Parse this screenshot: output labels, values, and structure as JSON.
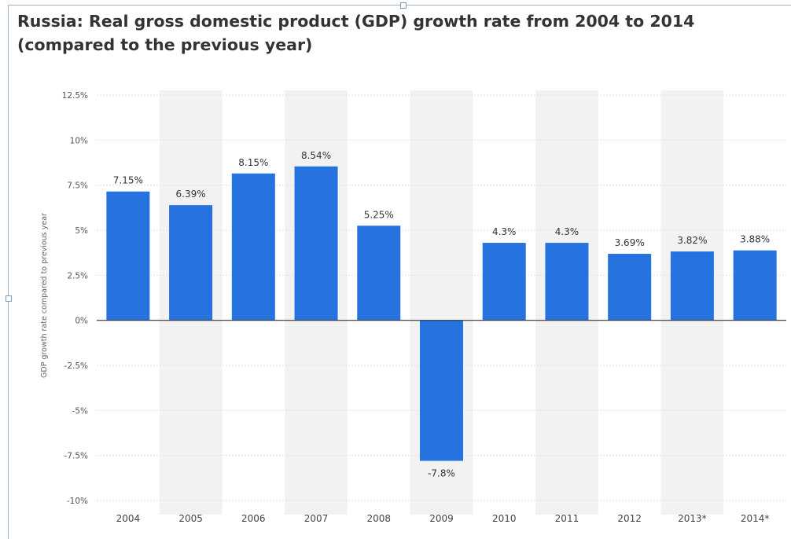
{
  "chart_data": {
    "type": "bar",
    "title": "Russia: Real gross domestic product (GDP) growth rate from 2004 to 2014 (compared to the previous year)",
    "ylabel": "GDP growth rate compared to previous year",
    "xlabel": "",
    "categories": [
      "2004",
      "2005",
      "2006",
      "2007",
      "2008",
      "2009",
      "2010",
      "2011",
      "2012",
      "2013*",
      "2014*"
    ],
    "values": [
      7.15,
      6.39,
      8.15,
      8.54,
      5.25,
      -7.8,
      4.3,
      4.3,
      3.69,
      3.82,
      3.88
    ],
    "data_labels": [
      "7.15%",
      "6.39%",
      "8.15%",
      "8.54%",
      "5.25%",
      "-7.8%",
      "4.3%",
      "4.3%",
      "3.69%",
      "3.82%",
      "3.88%"
    ],
    "y_ticks": [
      12.5,
      10,
      7.5,
      5,
      2.5,
      0,
      -2.5,
      -5,
      -7.5,
      -10
    ],
    "y_tick_labels": [
      "12.5%",
      "10%",
      "7.5%",
      "5%",
      "2.5%",
      "0%",
      "-2.5%",
      "-5%",
      "-7.5%",
      "-10%"
    ],
    "ylim": [
      -10,
      12.5
    ],
    "grid": true,
    "legend": "none",
    "colors": {
      "bar": "#2673e0",
      "band": "#f2f2f2",
      "grid": "#e3e3e3",
      "zero_line": "#333333",
      "title": "#333333"
    }
  }
}
